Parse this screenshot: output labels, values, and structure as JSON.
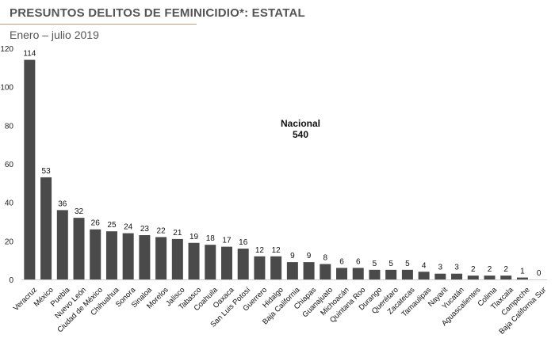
{
  "header": {
    "title": "PRESUNTOS DELITOS DE FEMINICIDIO*: ESTATAL",
    "subtitle": "Enero – julio 2019"
  },
  "annotation": {
    "label": "Nacional",
    "value": "540"
  },
  "colors": {
    "bar": "#4a4a4a",
    "title": "#555555",
    "rule": "#b0a08c"
  },
  "chart_data": {
    "type": "bar",
    "categories": [
      "Veracruz",
      "México",
      "Puebla",
      "Nuevo León",
      "Ciudad de México",
      "Chihuahua",
      "Sonora",
      "Sinaloa",
      "Morelos",
      "Jalisco",
      "Tabasco",
      "Coahuila",
      "Oaxaca",
      "San Luis Potosí",
      "Guerrero",
      "Hidalgo",
      "Baja California",
      "Chiapas",
      "Guanajuato",
      "Michoacán",
      "Quintana Roo",
      "Durango",
      "Querétaro",
      "Zacatecas",
      "Tamaulipas",
      "Nayarit",
      "Yucatán",
      "Aguascalientes",
      "Colima",
      "Tlaxcala",
      "Campeche",
      "Baja California Sur"
    ],
    "values": [
      114,
      53,
      36,
      32,
      26,
      25,
      24,
      23,
      22,
      21,
      19,
      18,
      17,
      16,
      12,
      12,
      9,
      9,
      8,
      6,
      6,
      5,
      5,
      5,
      4,
      3,
      3,
      2,
      2,
      2,
      1,
      0
    ],
    "yticks": [
      0,
      20,
      40,
      60,
      80,
      100,
      120
    ],
    "ylim": [
      0,
      120
    ],
    "grid": false,
    "legend": "none"
  }
}
